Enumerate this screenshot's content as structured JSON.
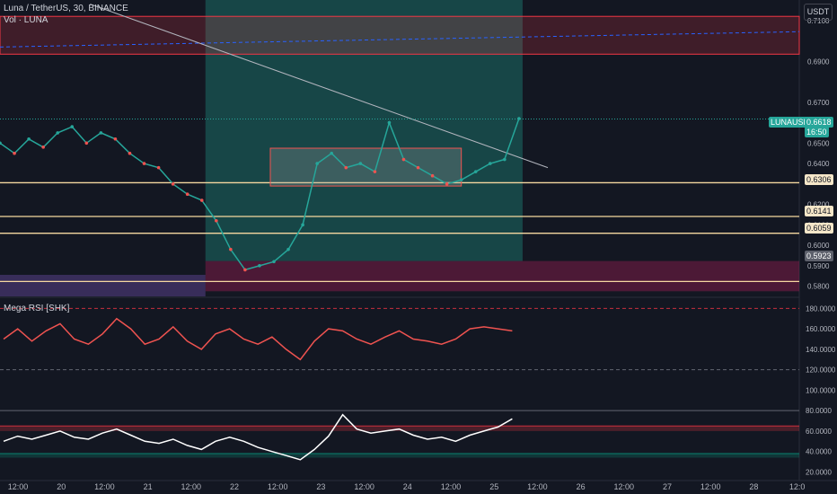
{
  "header": {
    "symbol_line": "Luna / TetherUS, 30, BINANCE",
    "volume_line": "Vol · LUNA",
    "indicator_line": "Mega RSI [SHK]"
  },
  "currency_button": "USDT",
  "last_price": {
    "symbol": "LUNAUSDT",
    "price": "0.6618",
    "countdown": "16:50"
  },
  "price_tags": [
    "0.6306",
    "0.6141",
    "0.6059",
    "0.5923"
  ],
  "colors": {
    "background": "#131722",
    "up": "#26a69a",
    "down": "#ef5350",
    "resistance_zone": "#f23645",
    "horizontal_level": "#f5d8a0",
    "rsi_line": "#ef5350",
    "osc_line": "#ffffff",
    "long_target": "#22ab94",
    "long_stop": "#b71c5c"
  },
  "chart_data": [
    {
      "type": "line",
      "title": "Luna / TetherUS, 30, BINANCE",
      "y_ticks": [
        "0.7100",
        "0.6900",
        "0.6700",
        "0.6500",
        "0.6400",
        "0.6200",
        "0.6100",
        "0.6000",
        "0.5900",
        "0.5800"
      ],
      "ylim": [
        0.575,
        0.72
      ],
      "x_ticks": [
        "12:00",
        "20",
        "12:00",
        "21",
        "12:00",
        "22",
        "12:00",
        "23",
        "12:00",
        "24",
        "12:00",
        "25",
        "12:00",
        "26",
        "12:00",
        "27",
        "12:00",
        "28",
        "12:0"
      ],
      "series": [
        {
          "x": [
            0,
            4,
            8,
            12,
            16,
            20,
            24,
            28,
            32,
            36,
            40,
            44,
            48,
            52,
            56,
            60,
            64,
            68,
            72,
            76,
            80,
            84,
            88,
            92,
            96,
            100,
            104,
            108,
            112,
            116,
            120,
            124,
            128,
            132,
            136,
            140,
            144
          ],
          "values": [
            0.65,
            0.645,
            0.652,
            0.648,
            0.655,
            0.658,
            0.65,
            0.655,
            0.652,
            0.645,
            0.64,
            0.638,
            0.63,
            0.625,
            0.622,
            0.612,
            0.598,
            0.588,
            0.59,
            0.592,
            0.598,
            0.61,
            0.64,
            0.645,
            0.638,
            0.64,
            0.636,
            0.66,
            0.642,
            0.638,
            0.634,
            0.63,
            0.632,
            0.636,
            0.64,
            0.642,
            0.662
          ]
        }
      ],
      "horizontal_levels": [
        0.6306,
        0.6141,
        0.6059,
        0.5823
      ],
      "resistance_zone": [
        0.6935,
        0.712
      ],
      "range_box": {
        "x": [
          75,
          128
        ],
        "y": [
          0.629,
          0.6475
        ]
      },
      "long_position": {
        "x": [
          57,
          145
        ],
        "target": [
          0.5923,
          0.72
        ],
        "stop": [
          0.5775,
          0.5923
        ]
      },
      "trendline": {
        "x": [
          25,
          152
        ],
        "y": [
          0.718,
          0.638
        ]
      }
    },
    {
      "type": "line",
      "title": "Mega RSI [SHK]",
      "y_ticks": [
        "180.0000",
        "160.0000",
        "140.0000",
        "120.0000",
        "100.0000",
        "80.0000",
        "60.0000",
        "40.0000",
        "20.0000"
      ],
      "ylim": [
        16,
        190
      ],
      "levels": [
        180,
        120,
        80,
        65,
        38
      ],
      "series": [
        {
          "values": [
            150,
            160,
            148,
            158,
            165,
            150,
            145,
            155,
            170,
            160,
            145,
            150,
            162,
            148,
            140,
            155,
            160,
            150,
            145,
            152,
            140,
            130,
            148,
            160,
            158,
            150,
            145,
            152,
            158,
            150,
            148,
            145,
            150,
            160,
            162,
            160,
            158
          ]
        },
        {
          "values": [
            50,
            55,
            52,
            56,
            60,
            54,
            52,
            58,
            62,
            56,
            50,
            48,
            52,
            46,
            42,
            50,
            54,
            50,
            44,
            40,
            36,
            32,
            42,
            55,
            76,
            62,
            58,
            60,
            62,
            56,
            52,
            54,
            50,
            56,
            60,
            64,
            72
          ]
        }
      ]
    }
  ]
}
